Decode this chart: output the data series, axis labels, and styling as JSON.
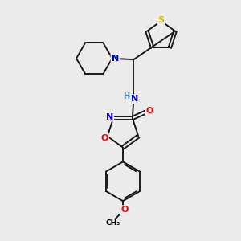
{
  "bg_color": "#ebebeb",
  "atom_colors": {
    "C": "#000000",
    "N": "#0000cc",
    "O": "#ff0000",
    "S": "#cccc00",
    "H": "#5588aa"
  },
  "bond_color": "#1a1a1a",
  "bond_width": 1.4,
  "figsize": [
    3.0,
    3.0
  ],
  "dpi": 100,
  "xlim": [
    0,
    10
  ],
  "ylim": [
    0,
    10
  ]
}
